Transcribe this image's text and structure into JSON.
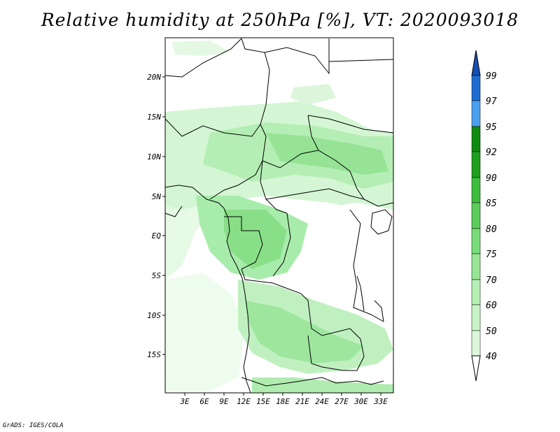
{
  "title": "Relative humidity at 250hPa [%], VT: 2020093018",
  "credit": "GrADS: IGES/COLA",
  "map": {
    "lon_ticks": [
      "3E",
      "6E",
      "9E",
      "12E",
      "15E",
      "18E",
      "21E",
      "24E",
      "27E",
      "30E",
      "33E"
    ],
    "lat_ticks": [
      "20N",
      "15N",
      "10N",
      "5N",
      "EQ",
      "5S",
      "10S",
      "15S"
    ]
  },
  "colorbar": {
    "levels": [
      "40",
      "50",
      "60",
      "70",
      "75",
      "80",
      "85",
      "90",
      "92",
      "95",
      "97",
      "99"
    ],
    "colors": [
      "#f0fcf0",
      "#dcf8dc",
      "#c8f4c8",
      "#b4f0b4",
      "#96e696",
      "#78dc78",
      "#5acd5a",
      "#3cbe3c",
      "#1ea01e",
      "#0f8c0f",
      "#4aa0f0",
      "#1e6ed2",
      "#1450b4"
    ]
  },
  "colors": {
    "land_border": "#000000",
    "background": "#ffffff"
  }
}
